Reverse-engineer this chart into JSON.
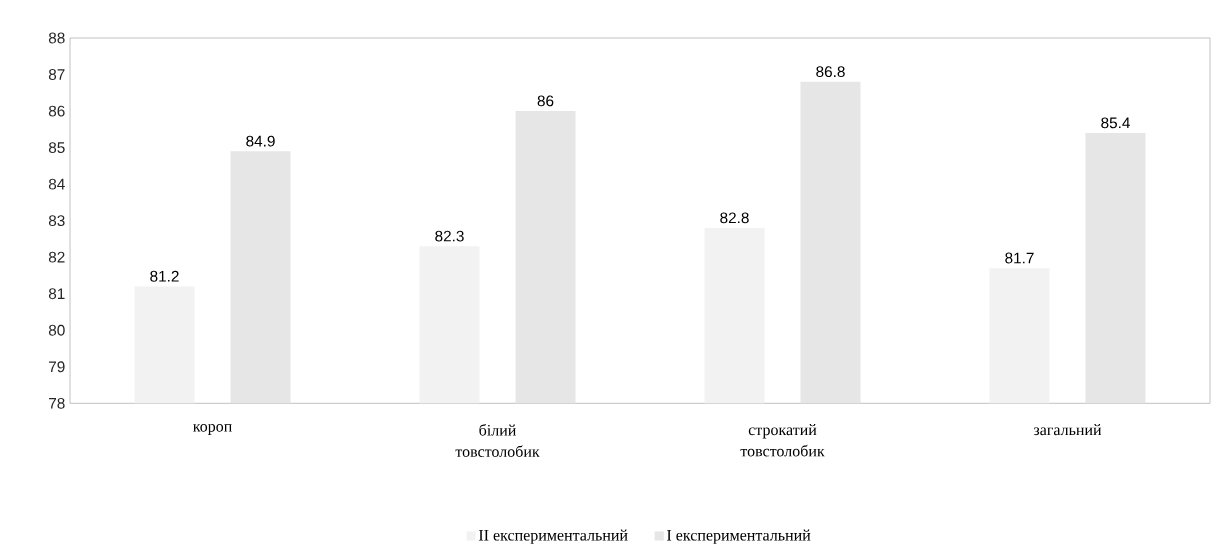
{
  "chart_data": {
    "type": "bar",
    "categories": [
      "короп",
      "білий товстолобик",
      "строкатий товстолобик",
      "загальний"
    ],
    "series": [
      {
        "name": "II експериментальний",
        "color": "#f2f2f2",
        "values": [
          81.2,
          82.3,
          82.8,
          81.7
        ]
      },
      {
        "name": "I експериментальний",
        "color": "#e6e6e6",
        "values": [
          84.9,
          86,
          86.8,
          85.4
        ]
      }
    ],
    "ylim": [
      78,
      88
    ],
    "yticks": [
      78,
      79,
      80,
      81,
      82,
      83,
      84,
      85,
      86,
      87,
      88
    ],
    "grid": false,
    "legend": "bottom",
    "data_labels": true
  }
}
